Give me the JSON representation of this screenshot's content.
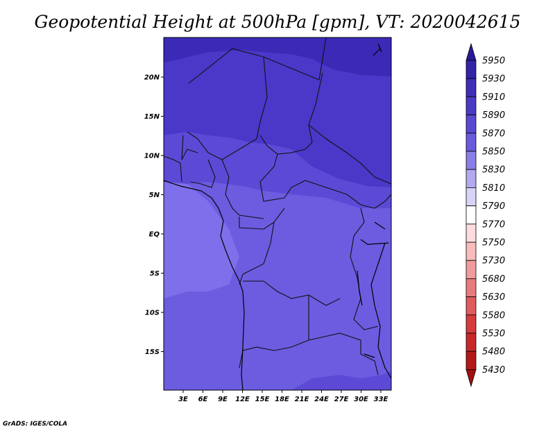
{
  "title": "Geopotential Height at 500hPa [gpm], VT: 2020042615",
  "credit": "GrADS: IGES/COLA",
  "map": {
    "lon_labels": [
      "3E",
      "6E",
      "9E",
      "12E",
      "15E",
      "18E",
      "21E",
      "24E",
      "27E",
      "30E",
      "33E"
    ],
    "lat_labels": [
      "20N",
      "15N",
      "10N",
      "5N",
      "EQ",
      "5S",
      "10S",
      "15S"
    ],
    "field_colors": {
      "5850_5870": "#6c5ce0",
      "5870_5890": "#5c4ad6",
      "5890_5910": "#4a38c8",
      "5910_5930": "#3a2ab6",
      "5830_5850": "#7e70ea"
    }
  },
  "colorbar": {
    "levels": [
      "5950",
      "5930",
      "5910",
      "5890",
      "5870",
      "5850",
      "5830",
      "5810",
      "5790",
      "5770",
      "5750",
      "5730",
      "5680",
      "5630",
      "5580",
      "5530",
      "5480",
      "5430"
    ],
    "colors": [
      "#2a1a9a",
      "#3424a8",
      "#3e2eb8",
      "#4a3ac6",
      "#5a4ad2",
      "#6a5ade",
      "#8a7ee8",
      "#b2aaf0",
      "#d8d4f8",
      "#ffffff",
      "#fcdcdc",
      "#f8bcbc",
      "#f09c9c",
      "#e87c7c",
      "#e05c5c",
      "#d63c3c",
      "#c82828",
      "#b41818",
      "#a01010"
    ]
  }
}
